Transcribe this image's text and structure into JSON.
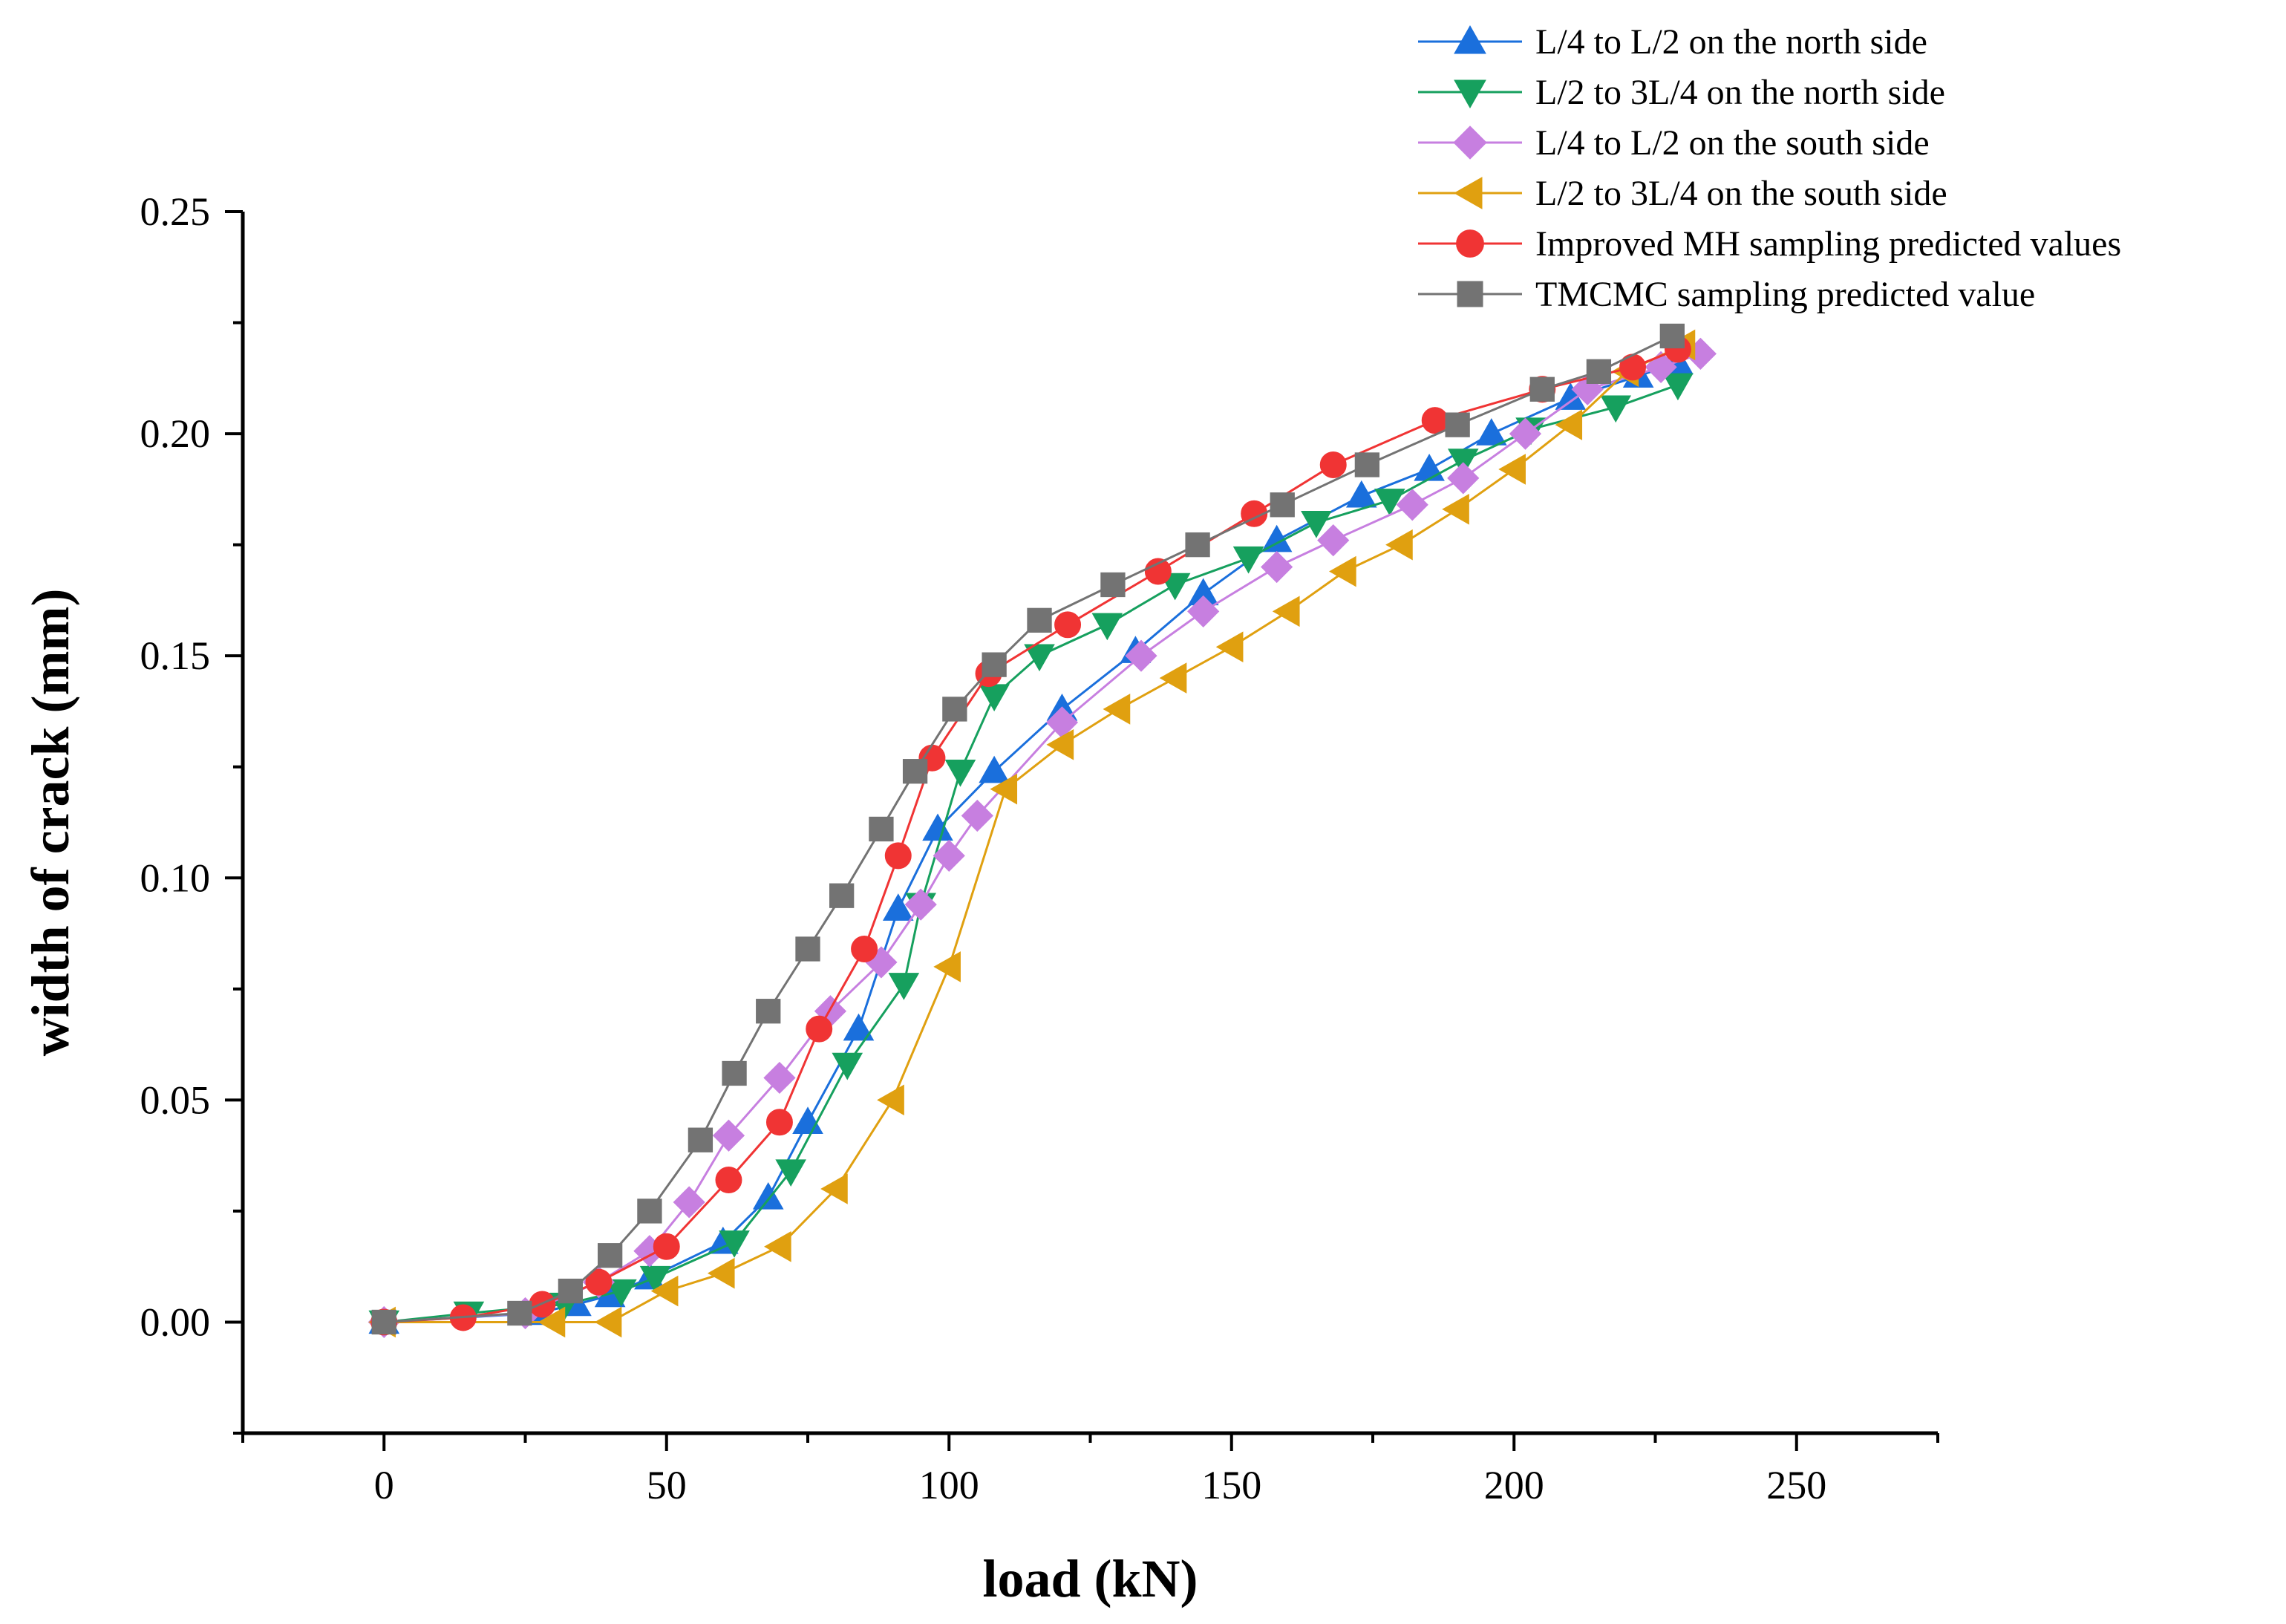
{
  "chart_data": {
    "type": "line",
    "title": "",
    "xlabel": "load (kN)",
    "ylabel": "width of crack (mm)",
    "xlim": [
      -25,
      275
    ],
    "ylim": [
      -0.025,
      0.25
    ],
    "xticks": [
      0,
      50,
      100,
      150,
      200,
      250
    ],
    "xtick_labels": [
      "0",
      "50",
      "100",
      "150",
      "200",
      "250"
    ],
    "yticks": [
      0.0,
      0.05,
      0.1,
      0.15,
      0.2,
      0.25
    ],
    "ytick_labels": [
      "0.00",
      "0.05",
      "0.10",
      "0.15",
      "0.20",
      "0.25"
    ],
    "grid": false,
    "legend_position": "top-right",
    "series": [
      {
        "name": "L/4 to L/2 on the north side",
        "color": "#1a6fdc",
        "marker": "triangle-up",
        "points": [
          [
            0,
            0
          ],
          [
            27,
            0.002
          ],
          [
            34,
            0.004
          ],
          [
            40,
            0.006
          ],
          [
            47,
            0.01
          ],
          [
            60,
            0.018
          ],
          [
            68,
            0.028
          ],
          [
            75,
            0.045
          ],
          [
            84,
            0.066
          ],
          [
            91,
            0.093
          ],
          [
            98,
            0.111
          ],
          [
            108,
            0.124
          ],
          [
            120,
            0.138
          ],
          [
            133,
            0.151
          ],
          [
            145,
            0.164
          ],
          [
            158,
            0.176
          ],
          [
            173,
            0.186
          ],
          [
            185,
            0.192
          ],
          [
            196,
            0.2
          ],
          [
            210,
            0.208
          ],
          [
            222,
            0.213
          ],
          [
            229,
            0.216
          ]
        ]
      },
      {
        "name": "L/2 to 3L/4 on the north side",
        "color": "#16a05e",
        "marker": "triangle-down",
        "points": [
          [
            0,
            0
          ],
          [
            15,
            0.002
          ],
          [
            32,
            0.004
          ],
          [
            42,
            0.007
          ],
          [
            48,
            0.01
          ],
          [
            62,
            0.018
          ],
          [
            72,
            0.034
          ],
          [
            82,
            0.058
          ],
          [
            92,
            0.076
          ],
          [
            95,
            0.094
          ],
          [
            102,
            0.124
          ],
          [
            108,
            0.141
          ],
          [
            116,
            0.15
          ],
          [
            128,
            0.157
          ],
          [
            140,
            0.166
          ],
          [
            153,
            0.172
          ],
          [
            165,
            0.18
          ],
          [
            178,
            0.185
          ],
          [
            191,
            0.194
          ],
          [
            203,
            0.201
          ],
          [
            218,
            0.206
          ],
          [
            229,
            0.211
          ]
        ]
      },
      {
        "name": "L/4 to L/2 on the south side",
        "color": "#c77fe0",
        "marker": "diamond",
        "points": [
          [
            0,
            0
          ],
          [
            25,
            0.002
          ],
          [
            38,
            0.009
          ],
          [
            47,
            0.016
          ],
          [
            54,
            0.027
          ],
          [
            61,
            0.042
          ],
          [
            70,
            0.055
          ],
          [
            79,
            0.07
          ],
          [
            88,
            0.081
          ],
          [
            95,
            0.094
          ],
          [
            100,
            0.105
          ],
          [
            105,
            0.114
          ],
          [
            120,
            0.135
          ],
          [
            134,
            0.15
          ],
          [
            145,
            0.16
          ],
          [
            158,
            0.17
          ],
          [
            168,
            0.176
          ],
          [
            182,
            0.184
          ],
          [
            191,
            0.19
          ],
          [
            202,
            0.2
          ],
          [
            213,
            0.21
          ],
          [
            226,
            0.215
          ],
          [
            233,
            0.218
          ]
        ]
      },
      {
        "name": "L/2 to 3L/4 on the south side",
        "color": "#e0a010",
        "marker": "triangle-left",
        "points": [
          [
            0,
            0
          ],
          [
            30,
            0.0
          ],
          [
            40,
            0.0
          ],
          [
            50,
            0.007
          ],
          [
            60,
            0.011
          ],
          [
            70,
            0.017
          ],
          [
            80,
            0.03
          ],
          [
            90,
            0.05
          ],
          [
            100,
            0.08
          ],
          [
            110,
            0.12
          ],
          [
            120,
            0.13
          ],
          [
            130,
            0.138
          ],
          [
            140,
            0.145
          ],
          [
            150,
            0.152
          ],
          [
            160,
            0.16
          ],
          [
            170,
            0.169
          ],
          [
            180,
            0.175
          ],
          [
            190,
            0.183
          ],
          [
            200,
            0.192
          ],
          [
            210,
            0.202
          ],
          [
            220,
            0.214
          ],
          [
            230,
            0.22
          ]
        ]
      },
      {
        "name": "Improved MH sampling predicted values",
        "color": "#f03434",
        "marker": "circle",
        "points": [
          [
            0,
            0
          ],
          [
            14,
            0.001
          ],
          [
            28,
            0.004
          ],
          [
            38,
            0.009
          ],
          [
            50,
            0.017
          ],
          [
            61,
            0.032
          ],
          [
            70,
            0.045
          ],
          [
            77,
            0.066
          ],
          [
            85,
            0.084
          ],
          [
            91,
            0.105
          ],
          [
            97,
            0.127
          ],
          [
            107,
            0.146
          ],
          [
            121,
            0.157
          ],
          [
            137,
            0.169
          ],
          [
            154,
            0.182
          ],
          [
            168,
            0.193
          ],
          [
            186,
            0.203
          ],
          [
            205,
            0.21
          ],
          [
            221,
            0.215
          ],
          [
            229,
            0.219
          ]
        ]
      },
      {
        "name": "TMCMC sampling predicted value",
        "color": "#737373",
        "marker": "square",
        "points": [
          [
            0,
            0
          ],
          [
            24,
            0.002
          ],
          [
            33,
            0.007
          ],
          [
            40,
            0.015
          ],
          [
            47,
            0.025
          ],
          [
            56,
            0.041
          ],
          [
            62,
            0.056
          ],
          [
            68,
            0.07
          ],
          [
            75,
            0.084
          ],
          [
            81,
            0.096
          ],
          [
            88,
            0.111
          ],
          [
            94,
            0.124
          ],
          [
            101,
            0.138
          ],
          [
            108,
            0.148
          ],
          [
            116,
            0.158
          ],
          [
            129,
            0.166
          ],
          [
            144,
            0.175
          ],
          [
            159,
            0.184
          ],
          [
            174,
            0.193
          ],
          [
            190,
            0.202
          ],
          [
            205,
            0.21
          ],
          [
            215,
            0.214
          ],
          [
            228,
            0.222
          ]
        ]
      }
    ]
  }
}
